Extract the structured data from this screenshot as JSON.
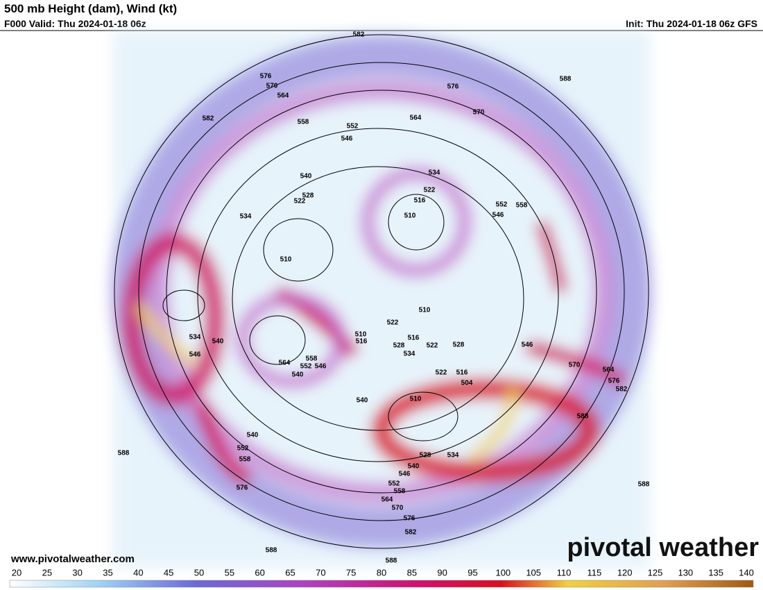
{
  "header": {
    "title": "500 mb Height (dam), Wind (kt)",
    "valid": "F000 Valid: Thu 2024-01-18 06z",
    "init": "Init: Thu 2024-01-18 06z GFS"
  },
  "map": {
    "contour_labels": [
      582,
      576,
      570,
      564,
      582,
      558,
      552,
      546,
      564,
      576,
      570,
      588,
      540,
      534,
      522,
      516,
      528,
      522,
      534,
      510,
      510,
      552,
      558,
      546,
      510,
      522,
      510,
      516,
      528,
      516,
      522,
      534,
      528,
      534,
      540,
      546,
      558,
      564,
      552,
      546,
      540,
      522,
      516,
      504,
      546,
      570,
      564,
      576,
      582,
      540,
      510,
      588,
      540,
      552,
      558,
      588,
      576,
      528,
      534,
      540,
      546,
      552,
      558,
      564,
      570,
      576,
      582,
      588,
      588,
      588
    ]
  },
  "footer": {
    "url": "www.pivotalweather.com",
    "logo": "pivotal weather"
  },
  "colorbar": {
    "ticks": [
      20,
      25,
      30,
      35,
      40,
      45,
      50,
      55,
      60,
      65,
      70,
      75,
      80,
      85,
      90,
      95,
      100,
      105,
      110,
      115,
      120,
      125,
      130,
      135,
      140
    ]
  }
}
